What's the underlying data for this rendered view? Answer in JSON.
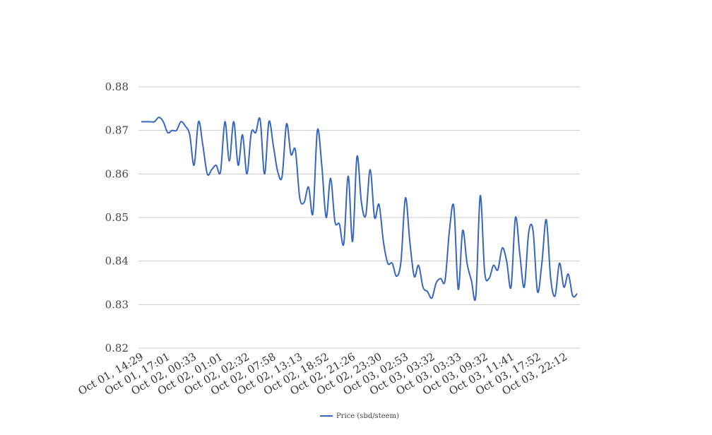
{
  "chart_data": {
    "type": "line",
    "title": "",
    "xlabel": "",
    "ylabel": "",
    "ylim": [
      0.82,
      0.88
    ],
    "yticks": [
      "0.82",
      "0.83",
      "0.84",
      "0.85",
      "0.86",
      "0.87",
      "0.88"
    ],
    "grid": "horizontal",
    "legend_position": "bottom",
    "x_tick_labels": [
      "Oct 01, 14:29",
      "Oct 01, 17:01",
      "Oct 02, 00:33",
      "Oct 02, 01:01",
      "Oct 02, 02:32",
      "Oct 02, 07:58",
      "Oct 02, 13:13",
      "Oct 02, 18:52",
      "Oct 02, 21:26",
      "Oct 02, 23:30",
      "Oct 03, 02:53",
      "Oct 03, 03:32",
      "Oct 03, 03:33",
      "Oct 03, 09:32",
      "Oct 03, 11:41",
      "Oct 03, 17:52",
      "Oct 03, 22:12"
    ],
    "series": [
      {
        "name": "Price (sbd/steem)",
        "color": "#3566c0",
        "values": [
          0.872,
          0.872,
          0.872,
          0.872,
          0.873,
          0.872,
          0.8695,
          0.87,
          0.87,
          0.872,
          0.871,
          0.869,
          0.862,
          0.872,
          0.8665,
          0.86,
          0.861,
          0.862,
          0.8605,
          0.872,
          0.863,
          0.872,
          0.862,
          0.869,
          0.86,
          0.8695,
          0.8695,
          0.8725,
          0.86,
          0.872,
          0.8665,
          0.8605,
          0.8595,
          0.8715,
          0.8645,
          0.8655,
          0.8545,
          0.8535,
          0.857,
          0.851,
          0.87,
          0.862,
          0.85,
          0.859,
          0.849,
          0.8485,
          0.844,
          0.8595,
          0.8445,
          0.864,
          0.8535,
          0.8505,
          0.861,
          0.85,
          0.853,
          0.8445,
          0.8395,
          0.8395,
          0.8365,
          0.84,
          0.8545,
          0.8445,
          0.8365,
          0.839,
          0.834,
          0.833,
          0.8315,
          0.835,
          0.836,
          0.8355,
          0.847,
          0.8525,
          0.8335,
          0.847,
          0.8395,
          0.8355,
          0.832,
          0.855,
          0.8375,
          0.836,
          0.839,
          0.838,
          0.843,
          0.84,
          0.834,
          0.85,
          0.8415,
          0.834,
          0.8465,
          0.847,
          0.833,
          0.8395,
          0.8495,
          0.836,
          0.832,
          0.8395,
          0.834,
          0.837,
          0.832,
          0.8325
        ]
      }
    ]
  },
  "legend": {
    "label": "Price (sbd/steem)"
  }
}
